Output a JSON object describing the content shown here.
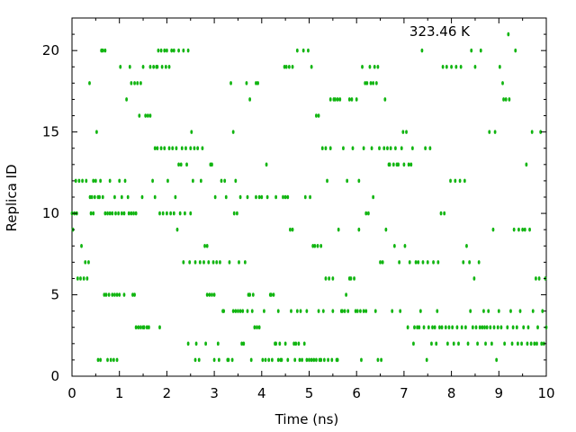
{
  "chart_data": {
    "type": "scatter",
    "annotation": "323.46 K",
    "xlabel": "Time (ns)",
    "ylabel": "Replica ID",
    "xlim": [
      0,
      10
    ],
    "ylim": [
      0,
      22
    ],
    "xticks": [
      "0",
      "1",
      "2",
      "3",
      "4",
      "5",
      "6",
      "7",
      "8",
      "9",
      "10"
    ],
    "yticks": [
      "0",
      "5",
      "10",
      "15",
      "20"
    ],
    "color": "#11b511",
    "grid": false,
    "points": [
      [
        0.0,
        10
      ],
      [
        0.02,
        9
      ],
      [
        0.05,
        10
      ],
      [
        0.08,
        12
      ],
      [
        0.1,
        10
      ],
      [
        0.12,
        6
      ],
      [
        0.15,
        12
      ],
      [
        0.18,
        6
      ],
      [
        0.2,
        8
      ],
      [
        0.22,
        12
      ],
      [
        0.25,
        6
      ],
      [
        0.28,
        7
      ],
      [
        0.3,
        12
      ],
      [
        0.32,
        6
      ],
      [
        0.35,
        7
      ],
      [
        0.37,
        18
      ],
      [
        0.38,
        11
      ],
      [
        0.4,
        10
      ],
      [
        0.42,
        11
      ],
      [
        0.45,
        10
      ],
      [
        0.45,
        12
      ],
      [
        0.48,
        11
      ],
      [
        0.5,
        12
      ],
      [
        0.52,
        15
      ],
      [
        0.55,
        11
      ],
      [
        0.55,
        1
      ],
      [
        0.58,
        11
      ],
      [
        0.6,
        12
      ],
      [
        0.6,
        1
      ],
      [
        0.62,
        20
      ],
      [
        0.65,
        11
      ],
      [
        0.65,
        20
      ],
      [
        0.68,
        5
      ],
      [
        0.7,
        20
      ],
      [
        0.7,
        10
      ],
      [
        0.72,
        5
      ],
      [
        0.75,
        10
      ],
      [
        0.75,
        1
      ],
      [
        0.78,
        5
      ],
      [
        0.8,
        10
      ],
      [
        0.8,
        12
      ],
      [
        0.82,
        1
      ],
      [
        0.85,
        5
      ],
      [
        0.85,
        10
      ],
      [
        0.88,
        1
      ],
      [
        0.9,
        5
      ],
      [
        0.9,
        11
      ],
      [
        0.92,
        10
      ],
      [
        0.95,
        1
      ],
      [
        0.95,
        5
      ],
      [
        0.98,
        10
      ],
      [
        1.0,
        5
      ],
      [
        1.0,
        12
      ],
      [
        1.02,
        19
      ],
      [
        1.05,
        10
      ],
      [
        1.05,
        11
      ],
      [
        1.1,
        5
      ],
      [
        1.1,
        10
      ],
      [
        1.12,
        12
      ],
      [
        1.15,
        17
      ],
      [
        1.18,
        11
      ],
      [
        1.2,
        10
      ],
      [
        1.22,
        19
      ],
      [
        1.25,
        18
      ],
      [
        1.25,
        10
      ],
      [
        1.28,
        5
      ],
      [
        1.3,
        10
      ],
      [
        1.32,
        5
      ],
      [
        1.32,
        18
      ],
      [
        1.35,
        10
      ],
      [
        1.35,
        3
      ],
      [
        1.38,
        18
      ],
      [
        1.4,
        3
      ],
      [
        1.42,
        16
      ],
      [
        1.45,
        18
      ],
      [
        1.45,
        3
      ],
      [
        1.48,
        11
      ],
      [
        1.5,
        19
      ],
      [
        1.5,
        3
      ],
      [
        1.52,
        3
      ],
      [
        1.55,
        16
      ],
      [
        1.58,
        3
      ],
      [
        1.6,
        16
      ],
      [
        1.62,
        3
      ],
      [
        1.65,
        16
      ],
      [
        1.65,
        19
      ],
      [
        1.7,
        12
      ],
      [
        1.72,
        19
      ],
      [
        1.75,
        14
      ],
      [
        1.75,
        11
      ],
      [
        1.78,
        19
      ],
      [
        1.8,
        19
      ],
      [
        1.8,
        14
      ],
      [
        1.82,
        20
      ],
      [
        1.85,
        10
      ],
      [
        1.85,
        3
      ],
      [
        1.88,
        20
      ],
      [
        1.88,
        14
      ],
      [
        1.9,
        19
      ],
      [
        1.92,
        10
      ],
      [
        1.95,
        20
      ],
      [
        1.95,
        14
      ],
      [
        1.98,
        19
      ],
      [
        2.0,
        10
      ],
      [
        2.0,
        20
      ],
      [
        2.02,
        12
      ],
      [
        2.05,
        14
      ],
      [
        2.05,
        19
      ],
      [
        2.08,
        10
      ],
      [
        2.1,
        20
      ],
      [
        2.12,
        14
      ],
      [
        2.15,
        20
      ],
      [
        2.15,
        10
      ],
      [
        2.18,
        11
      ],
      [
        2.2,
        14
      ],
      [
        2.22,
        9
      ],
      [
        2.25,
        13
      ],
      [
        2.25,
        20
      ],
      [
        2.28,
        10
      ],
      [
        2.3,
        13
      ],
      [
        2.32,
        14
      ],
      [
        2.35,
        20
      ],
      [
        2.35,
        7
      ],
      [
        2.38,
        10
      ],
      [
        2.4,
        14
      ],
      [
        2.42,
        13
      ],
      [
        2.45,
        20
      ],
      [
        2.45,
        2
      ],
      [
        2.48,
        7
      ],
      [
        2.5,
        14
      ],
      [
        2.5,
        10
      ],
      [
        2.52,
        15
      ],
      [
        2.55,
        12
      ],
      [
        2.58,
        14
      ],
      [
        2.6,
        1
      ],
      [
        2.6,
        7
      ],
      [
        2.62,
        2
      ],
      [
        2.65,
        14
      ],
      [
        2.68,
        1
      ],
      [
        2.7,
        7
      ],
      [
        2.72,
        12
      ],
      [
        2.75,
        14
      ],
      [
        2.78,
        7
      ],
      [
        2.8,
        8
      ],
      [
        2.82,
        2
      ],
      [
        2.85,
        5
      ],
      [
        2.85,
        8
      ],
      [
        2.88,
        7
      ],
      [
        2.9,
        5
      ],
      [
        2.92,
        13
      ],
      [
        2.95,
        5
      ],
      [
        2.95,
        13
      ],
      [
        2.98,
        7
      ],
      [
        3.0,
        1
      ],
      [
        3.0,
        5
      ],
      [
        3.02,
        11
      ],
      [
        3.05,
        7
      ],
      [
        3.08,
        2
      ],
      [
        3.1,
        1
      ],
      [
        3.12,
        7
      ],
      [
        3.15,
        12
      ],
      [
        3.18,
        4
      ],
      [
        3.2,
        4
      ],
      [
        3.22,
        12
      ],
      [
        3.25,
        11
      ],
      [
        3.28,
        1
      ],
      [
        3.3,
        1
      ],
      [
        3.32,
        7
      ],
      [
        3.35,
        18
      ],
      [
        3.38,
        1
      ],
      [
        3.4,
        4
      ],
      [
        3.4,
        15
      ],
      [
        3.42,
        10
      ],
      [
        3.45,
        4
      ],
      [
        3.45,
        12
      ],
      [
        3.48,
        10
      ],
      [
        3.5,
        4
      ],
      [
        3.52,
        7
      ],
      [
        3.55,
        11
      ],
      [
        3.55,
        4
      ],
      [
        3.58,
        2
      ],
      [
        3.6,
        4
      ],
      [
        3.62,
        2
      ],
      [
        3.65,
        7
      ],
      [
        3.68,
        18
      ],
      [
        3.7,
        4
      ],
      [
        3.7,
        11
      ],
      [
        3.72,
        5
      ],
      [
        3.75,
        17
      ],
      [
        3.75,
        5
      ],
      [
        3.78,
        1
      ],
      [
        3.8,
        4
      ],
      [
        3.82,
        5
      ],
      [
        3.85,
        3
      ],
      [
        3.88,
        11
      ],
      [
        3.88,
        18
      ],
      [
        3.9,
        3
      ],
      [
        3.92,
        18
      ],
      [
        3.95,
        11
      ],
      [
        3.95,
        3
      ],
      [
        4.0,
        11
      ],
      [
        4.02,
        1
      ],
      [
        4.05,
        4
      ],
      [
        4.08,
        1
      ],
      [
        4.1,
        13
      ],
      [
        4.12,
        11
      ],
      [
        4.15,
        1
      ],
      [
        4.18,
        5
      ],
      [
        4.2,
        5
      ],
      [
        4.22,
        1
      ],
      [
        4.25,
        5
      ],
      [
        4.28,
        2
      ],
      [
        4.3,
        2
      ],
      [
        4.3,
        11
      ],
      [
        4.35,
        1
      ],
      [
        4.35,
        4
      ],
      [
        4.38,
        2
      ],
      [
        4.4,
        1
      ],
      [
        4.42,
        1
      ],
      [
        4.45,
        11
      ],
      [
        4.48,
        19
      ],
      [
        4.5,
        11
      ],
      [
        4.5,
        2
      ],
      [
        4.52,
        19
      ],
      [
        4.55,
        11
      ],
      [
        4.55,
        1
      ],
      [
        4.58,
        19
      ],
      [
        4.6,
        9
      ],
      [
        4.62,
        4
      ],
      [
        4.65,
        9
      ],
      [
        4.65,
        19
      ],
      [
        4.68,
        2
      ],
      [
        4.7,
        1
      ],
      [
        4.72,
        2
      ],
      [
        4.75,
        20
      ],
      [
        4.75,
        4
      ],
      [
        4.78,
        2
      ],
      [
        4.8,
        1
      ],
      [
        4.82,
        4
      ],
      [
        4.85,
        1
      ],
      [
        4.88,
        20
      ],
      [
        4.9,
        2
      ],
      [
        4.92,
        11
      ],
      [
        4.95,
        1
      ],
      [
        4.95,
        4
      ],
      [
        4.98,
        20
      ],
      [
        5.0,
        1
      ],
      [
        5.02,
        11
      ],
      [
        5.05,
        19
      ],
      [
        5.05,
        1
      ],
      [
        5.08,
        8
      ],
      [
        5.1,
        1
      ],
      [
        5.12,
        8
      ],
      [
        5.15,
        16
      ],
      [
        5.15,
        1
      ],
      [
        5.18,
        8
      ],
      [
        5.2,
        4
      ],
      [
        5.2,
        16
      ],
      [
        5.22,
        1
      ],
      [
        5.25,
        1
      ],
      [
        5.25,
        8
      ],
      [
        5.28,
        14
      ],
      [
        5.3,
        4
      ],
      [
        5.32,
        1
      ],
      [
        5.35,
        6
      ],
      [
        5.35,
        14
      ],
      [
        5.38,
        12
      ],
      [
        5.4,
        1
      ],
      [
        5.42,
        6
      ],
      [
        5.45,
        14
      ],
      [
        5.45,
        17
      ],
      [
        5.48,
        1
      ],
      [
        5.5,
        6
      ],
      [
        5.5,
        4
      ],
      [
        5.52,
        17
      ],
      [
        5.55,
        17
      ],
      [
        5.58,
        1
      ],
      [
        5.6,
        1
      ],
      [
        5.6,
        17
      ],
      [
        5.62,
        9
      ],
      [
        5.65,
        17
      ],
      [
        5.68,
        4
      ],
      [
        5.7,
        4
      ],
      [
        5.72,
        14
      ],
      [
        5.75,
        4
      ],
      [
        5.78,
        5
      ],
      [
        5.8,
        12
      ],
      [
        5.82,
        4
      ],
      [
        5.85,
        6
      ],
      [
        5.85,
        17
      ],
      [
        5.88,
        6
      ],
      [
        5.9,
        17
      ],
      [
        5.92,
        14
      ],
      [
        5.95,
        6
      ],
      [
        5.98,
        4
      ],
      [
        6.0,
        17
      ],
      [
        6.02,
        4
      ],
      [
        6.05,
        9
      ],
      [
        6.05,
        12
      ],
      [
        6.08,
        4
      ],
      [
        6.1,
        1
      ],
      [
        6.12,
        19
      ],
      [
        6.15,
        4
      ],
      [
        6.15,
        14
      ],
      [
        6.18,
        18
      ],
      [
        6.2,
        10
      ],
      [
        6.2,
        4
      ],
      [
        6.22,
        18
      ],
      [
        6.25,
        10
      ],
      [
        6.28,
        19
      ],
      [
        6.3,
        18
      ],
      [
        6.32,
        14
      ],
      [
        6.35,
        11
      ],
      [
        6.35,
        18
      ],
      [
        6.38,
        19
      ],
      [
        6.4,
        4
      ],
      [
        6.42,
        18
      ],
      [
        6.45,
        1
      ],
      [
        6.45,
        19
      ],
      [
        6.48,
        14
      ],
      [
        6.5,
        7
      ],
      [
        6.52,
        1
      ],
      [
        6.55,
        7
      ],
      [
        6.58,
        14
      ],
      [
        6.6,
        17
      ],
      [
        6.62,
        9
      ],
      [
        6.65,
        14
      ],
      [
        6.68,
        13
      ],
      [
        6.7,
        13
      ],
      [
        6.72,
        14
      ],
      [
        6.75,
        4
      ],
      [
        6.78,
        13
      ],
      [
        6.8,
        8
      ],
      [
        6.82,
        14
      ],
      [
        6.85,
        13
      ],
      [
        6.88,
        13
      ],
      [
        6.9,
        7
      ],
      [
        6.92,
        4
      ],
      [
        6.95,
        14
      ],
      [
        6.98,
        15
      ],
      [
        7.0,
        13
      ],
      [
        7.02,
        8
      ],
      [
        7.05,
        15
      ],
      [
        7.08,
        3
      ],
      [
        7.1,
        13
      ],
      [
        7.12,
        7
      ],
      [
        7.15,
        13
      ],
      [
        7.18,
        14
      ],
      [
        7.2,
        2
      ],
      [
        7.22,
        3
      ],
      [
        7.25,
        7
      ],
      [
        7.28,
        3
      ],
      [
        7.3,
        7
      ],
      [
        7.32,
        3
      ],
      [
        7.35,
        4
      ],
      [
        7.38,
        20
      ],
      [
        7.4,
        7
      ],
      [
        7.42,
        3
      ],
      [
        7.45,
        14
      ],
      [
        7.48,
        1
      ],
      [
        7.5,
        7
      ],
      [
        7.52,
        3
      ],
      [
        7.55,
        14
      ],
      [
        7.58,
        2
      ],
      [
        7.6,
        3
      ],
      [
        7.62,
        7
      ],
      [
        7.65,
        3
      ],
      [
        7.68,
        2
      ],
      [
        7.7,
        4
      ],
      [
        7.72,
        7
      ],
      [
        7.75,
        3
      ],
      [
        7.78,
        10
      ],
      [
        7.8,
        3
      ],
      [
        7.82,
        19
      ],
      [
        7.85,
        10
      ],
      [
        7.88,
        3
      ],
      [
        7.9,
        19
      ],
      [
        7.92,
        2
      ],
      [
        7.95,
        3
      ],
      [
        7.98,
        12
      ],
      [
        8.0,
        19
      ],
      [
        8.02,
        3
      ],
      [
        8.05,
        2
      ],
      [
        8.08,
        12
      ],
      [
        8.1,
        19
      ],
      [
        8.12,
        3
      ],
      [
        8.15,
        2
      ],
      [
        8.18,
        12
      ],
      [
        8.2,
        19
      ],
      [
        8.22,
        3
      ],
      [
        8.25,
        7
      ],
      [
        8.28,
        12
      ],
      [
        8.3,
        3
      ],
      [
        8.32,
        8
      ],
      [
        8.35,
        2
      ],
      [
        8.38,
        7
      ],
      [
        8.4,
        4
      ],
      [
        8.42,
        20
      ],
      [
        8.45,
        3
      ],
      [
        8.48,
        6
      ],
      [
        8.5,
        19
      ],
      [
        8.52,
        3
      ],
      [
        8.55,
        2
      ],
      [
        8.58,
        7
      ],
      [
        8.6,
        3
      ],
      [
        8.62,
        20
      ],
      [
        8.65,
        3
      ],
      [
        8.68,
        4
      ],
      [
        8.7,
        3
      ],
      [
        8.72,
        2
      ],
      [
        8.75,
        3
      ],
      [
        8.78,
        4
      ],
      [
        8.8,
        15
      ],
      [
        8.82,
        3
      ],
      [
        8.85,
        2
      ],
      [
        8.88,
        9
      ],
      [
        8.9,
        3
      ],
      [
        8.92,
        15
      ],
      [
        8.95,
        1
      ],
      [
        8.98,
        3
      ],
      [
        9.0,
        4
      ],
      [
        9.02,
        19
      ],
      [
        9.05,
        3
      ],
      [
        9.08,
        18
      ],
      [
        9.1,
        17
      ],
      [
        9.12,
        2
      ],
      [
        9.15,
        17
      ],
      [
        9.18,
        3
      ],
      [
        9.2,
        21
      ],
      [
        9.22,
        17
      ],
      [
        9.25,
        4
      ],
      [
        9.28,
        2
      ],
      [
        9.3,
        3
      ],
      [
        9.32,
        9
      ],
      [
        9.35,
        20
      ],
      [
        9.38,
        3
      ],
      [
        9.4,
        2
      ],
      [
        9.42,
        9
      ],
      [
        9.45,
        4
      ],
      [
        9.48,
        2
      ],
      [
        9.5,
        9
      ],
      [
        9.52,
        3
      ],
      [
        9.55,
        9
      ],
      [
        9.58,
        13
      ],
      [
        9.6,
        2
      ],
      [
        9.62,
        3
      ],
      [
        9.65,
        9
      ],
      [
        9.68,
        2
      ],
      [
        9.7,
        15
      ],
      [
        9.72,
        4
      ],
      [
        9.75,
        2
      ],
      [
        9.78,
        6
      ],
      [
        9.8,
        2
      ],
      [
        9.82,
        3
      ],
      [
        9.85,
        6
      ],
      [
        9.88,
        15
      ],
      [
        9.9,
        2
      ],
      [
        9.92,
        4
      ],
      [
        9.95,
        2
      ],
      [
        9.98,
        6
      ],
      [
        10.0,
        3
      ]
    ]
  }
}
